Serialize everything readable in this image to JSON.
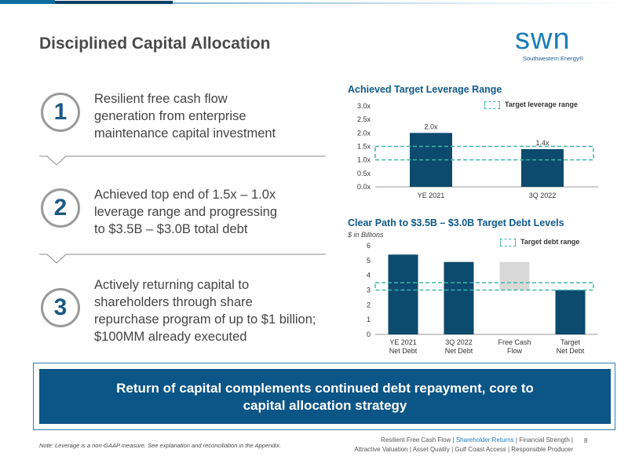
{
  "slide": {
    "title": "Disciplined Capital Allocation",
    "page_number": "8"
  },
  "logo": {
    "word": "swn",
    "subtitle": "Southwestern Energy®"
  },
  "points": [
    {
      "number": "1",
      "lines": [
        "Resilient free cash flow",
        "generation from enterprise",
        "maintenance capital investment"
      ]
    },
    {
      "number": "2",
      "lines": [
        "Achieved top end of 1.5x – 1.0x",
        "leverage range and progressing",
        "to $3.5B – $3.0B total debt"
      ]
    },
    {
      "number": "3",
      "lines": [
        "Actively returning capital to",
        "shareholders through share",
        "repurchase program of up to $1 billion;",
        "$100MM already executed"
      ]
    }
  ],
  "chart1": {
    "title": "Achieved Target Leverage Range",
    "legend": "Target leverage range"
  },
  "chart2": {
    "title": "Clear Path to $3.5B – $3.0B Target Debt Levels",
    "subtitle": "$ in Billions",
    "legend": "Target debt range"
  },
  "chart_data": [
    {
      "type": "bar",
      "title": "Achieved Target Leverage Range",
      "categories": [
        "YE 2021",
        "3Q 2022"
      ],
      "values": [
        2.0,
        1.4
      ],
      "value_labels": [
        "2.0x",
        "1.4x"
      ],
      "yticks": [
        "0.0x",
        "0.5x",
        "1.0x",
        "1.5x",
        "2.0x",
        "2.5x",
        "3.0x"
      ],
      "ylim": [
        0,
        3.0
      ],
      "band": [
        1.0,
        1.5
      ],
      "legend": [
        "Target leverage range"
      ],
      "legend_position": "top-right",
      "colors": {
        "bar": "#0c4a6e",
        "band": "#3fb6a8"
      }
    },
    {
      "type": "bar",
      "title": "Clear Path to $3.5B – $3.0B Target Debt Levels",
      "ylabel": "$ in Billions",
      "categories": [
        "YE 2021 Net Debt",
        "3Q 2022 Net Debt",
        "Free Cash Flow",
        "Target Net Debt"
      ],
      "category_lines": [
        [
          "YE 2021",
          "Net Debt"
        ],
        [
          "3Q 2022",
          "Net Debt"
        ],
        [
          "Free Cash",
          "Flow"
        ],
        [
          "Target",
          "Net Debt"
        ]
      ],
      "values": [
        5.4,
        4.9,
        3.0,
        3.0
      ],
      "floating": [
        null,
        null,
        [
          3.0,
          4.9
        ],
        null
      ],
      "yticks": [
        "0",
        "1",
        "2",
        "3",
        "4",
        "5",
        "6"
      ],
      "ylim": [
        0,
        6
      ],
      "band": [
        3.0,
        3.5
      ],
      "legend": [
        "Target debt range"
      ],
      "legend_position": "top-right",
      "colors": {
        "bar": "#0c4a6e",
        "floating": "#d9d9d9",
        "band": "#3fb6a8"
      }
    }
  ],
  "banner": {
    "lines": [
      "Return of capital complements continued debt repayment, core to",
      "capital allocation strategy"
    ]
  },
  "note": "Note: Leverage is a non-GAAP measure. See explanation and reconciliation in the Appendix.",
  "footer": {
    "items": [
      "Resilient Free Cash Flow",
      "Shareholder Returns",
      "Financial Strength",
      "Attractive Valuation",
      "Asset Quality",
      "Gulf Coast Access",
      "Responsible Producer"
    ],
    "highlight_color": "#1c7db7"
  }
}
